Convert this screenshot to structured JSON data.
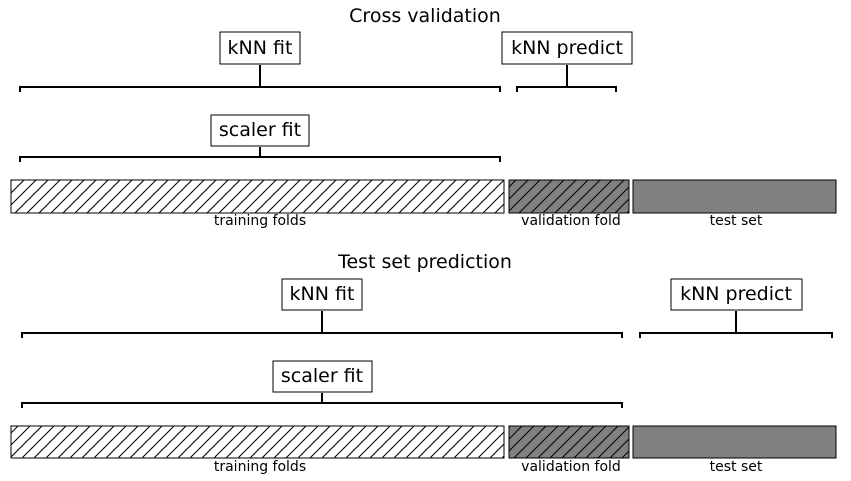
{
  "panels": [
    {
      "title": "Cross validation",
      "segments": [
        {
          "label": "training folds",
          "fill": "#ffffff",
          "hatch": true
        },
        {
          "label": "validation fold",
          "fill": "#808080",
          "hatch": true
        },
        {
          "label": "test set",
          "fill": "#808080",
          "hatch": false
        }
      ],
      "brackets": [
        {
          "label": "kNN fit"
        },
        {
          "label": "kNN predict"
        },
        {
          "label": "scaler fit"
        }
      ]
    },
    {
      "title": "Test set prediction",
      "segments": [
        {
          "label": "training folds",
          "fill": "#ffffff",
          "hatch": true
        },
        {
          "label": "validation fold",
          "fill": "#808080",
          "hatch": true
        },
        {
          "label": "test set",
          "fill": "#808080",
          "hatch": false
        }
      ],
      "brackets": [
        {
          "label": "kNN fit"
        },
        {
          "label": "kNN predict"
        },
        {
          "label": "scaler fit"
        }
      ]
    }
  ]
}
